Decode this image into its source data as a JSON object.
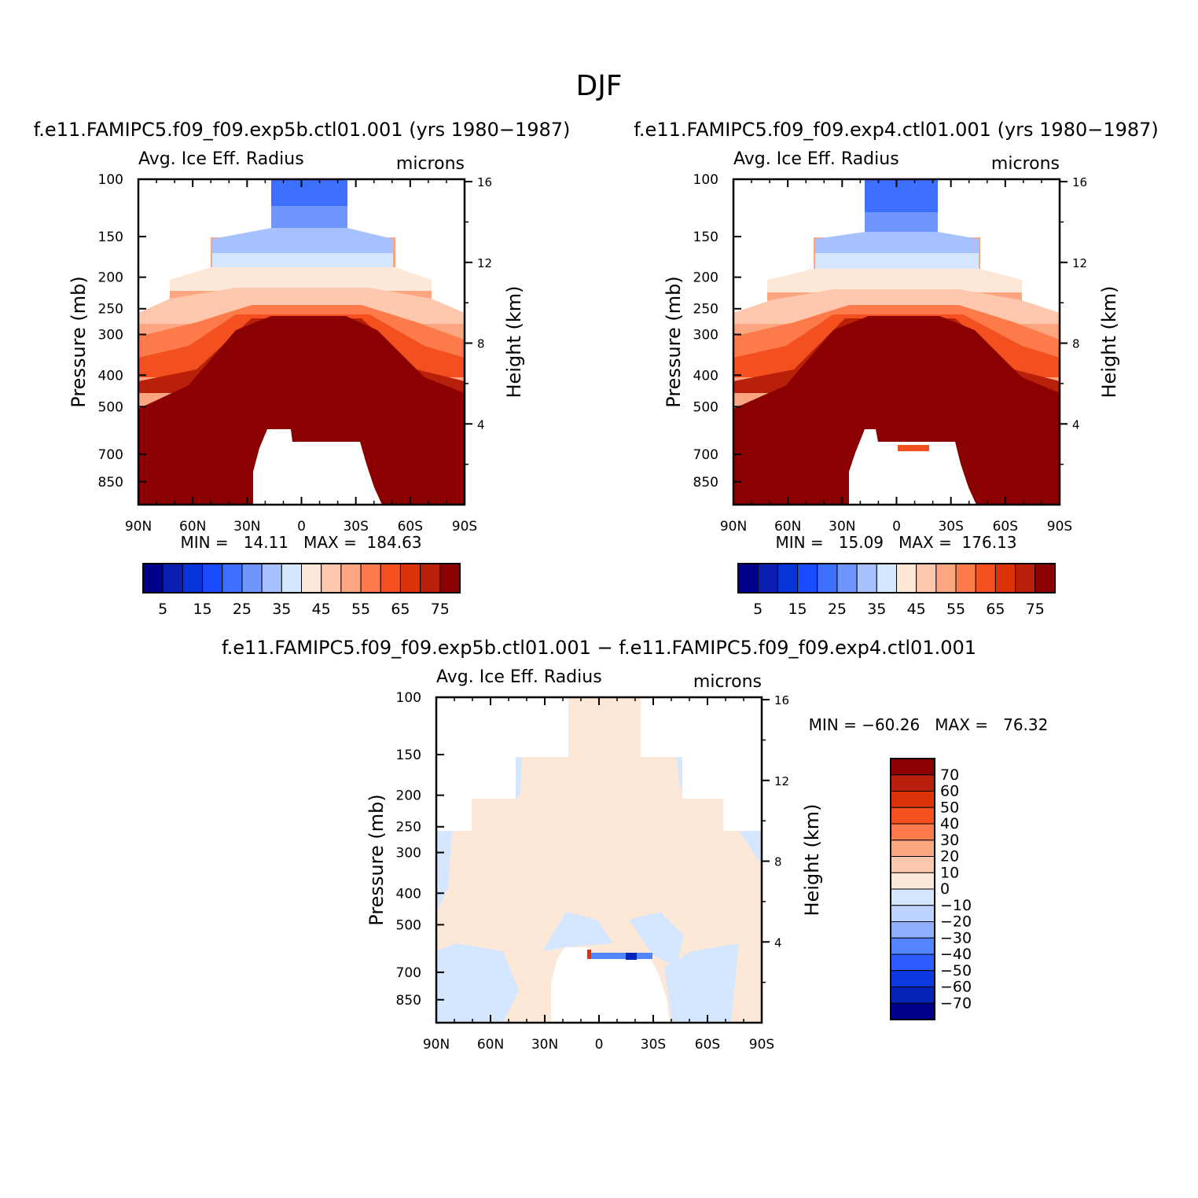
{
  "figure_title": "DJF",
  "chart_data": [
    {
      "type": "heatmap",
      "title": "f.e11.FAMIPC5.f09_f09.exp5b.ctl01.001 (yrs 1980-1987)",
      "variable": "Avg. Ice Eff. Radius",
      "units": "microns",
      "xlabel": "",
      "ylabel": "Pressure (mb)",
      "y2label": "Height (km)",
      "x_ticks": [
        "90N",
        "60N",
        "30N",
        "0",
        "30S",
        "60S",
        "90S"
      ],
      "y_ticks": [
        "100",
        "150",
        "200",
        "250",
        "300",
        "400",
        "500",
        "700",
        "850"
      ],
      "y2_ticks": [
        "16",
        "12",
        "8",
        "4"
      ],
      "ylim": [
        100,
        1000
      ],
      "stats": "MIN =   14.11   MAX =  184.63",
      "min": 14.11,
      "max": 184.63,
      "colorbar": {
        "orientation": "horizontal",
        "levels": [
          5,
          10,
          15,
          20,
          25,
          30,
          35,
          40,
          45,
          50,
          55,
          60,
          65,
          70,
          75
        ],
        "labels": [
          "5",
          "15",
          "25",
          "35",
          "45",
          "55",
          "65",
          "75"
        ],
        "colors": [
          "#00008b",
          "#0a1fb0",
          "#0535d8",
          "#1a4cff",
          "#3d70ff",
          "#6f95ff",
          "#a7c1ff",
          "#d5e6ff",
          "#fde8d8",
          "#fdc8ae",
          "#fca581",
          "#fd7a4a",
          "#f34f1f",
          "#dc3309",
          "#b8200a",
          "#8b0000"
        ]
      }
    },
    {
      "type": "heatmap",
      "title": "f.e11.FAMIPC5.f09_f09.exp4.ctl01.001 (yrs 1980-1987)",
      "variable": "Avg. Ice Eff. Radius",
      "units": "microns",
      "xlabel": "",
      "ylabel": "Pressure (mb)",
      "y2label": "Height (km)",
      "x_ticks": [
        "90N",
        "60N",
        "30N",
        "0",
        "30S",
        "60S",
        "90S"
      ],
      "y_ticks": [
        "100",
        "150",
        "200",
        "250",
        "300",
        "400",
        "500",
        "700",
        "850"
      ],
      "y2_ticks": [
        "16",
        "12",
        "8",
        "4"
      ],
      "ylim": [
        100,
        1000
      ],
      "stats": "MIN =   15.09   MAX =  176.13",
      "min": 15.09,
      "max": 176.13,
      "colorbar": {
        "orientation": "horizontal",
        "levels": [
          5,
          10,
          15,
          20,
          25,
          30,
          35,
          40,
          45,
          50,
          55,
          60,
          65,
          70,
          75
        ],
        "labels": [
          "5",
          "15",
          "25",
          "35",
          "45",
          "55",
          "65",
          "75"
        ],
        "colors": [
          "#00008b",
          "#0a1fb0",
          "#0535d8",
          "#1a4cff",
          "#3d70ff",
          "#6f95ff",
          "#a7c1ff",
          "#d5e6ff",
          "#fde8d8",
          "#fdc8ae",
          "#fca581",
          "#fd7a4a",
          "#f34f1f",
          "#dc3309",
          "#b8200a",
          "#8b0000"
        ]
      }
    },
    {
      "type": "heatmap",
      "title": "f.e11.FAMIPC5.f09_f09.exp5b.ctl01.001 - f.e11.FAMIPC5.f09_f09.exp4.ctl01.001",
      "variable": "Avg. Ice Eff. Radius",
      "units": "microns",
      "xlabel": "",
      "ylabel": "Pressure (mb)",
      "y2label": "Height (km)",
      "x_ticks": [
        "90N",
        "60N",
        "30N",
        "0",
        "30S",
        "60S",
        "90S"
      ],
      "y_ticks": [
        "100",
        "150",
        "200",
        "250",
        "300",
        "400",
        "500",
        "700",
        "850"
      ],
      "y2_ticks": [
        "16",
        "12",
        "8",
        "4"
      ],
      "ylim": [
        100,
        1000
      ],
      "stats": "MIN = -60.26   MAX =   76.32",
      "min": -60.26,
      "max": 76.32,
      "colorbar": {
        "orientation": "vertical",
        "levels": [
          70,
          60,
          50,
          40,
          30,
          20,
          10,
          0,
          -10,
          -20,
          -30,
          -40,
          -50,
          -60,
          -70
        ],
        "labels": [
          "70",
          "60",
          "50",
          "40",
          "30",
          "20",
          "10",
          "0",
          "-10",
          "-20",
          "-30",
          "-40",
          "-50",
          "-60",
          "-70"
        ],
        "colors": [
          "#8b0000",
          "#b8200a",
          "#dc3309",
          "#f34f1f",
          "#fd7a4a",
          "#fca581",
          "#fdc8ae",
          "#fde8d8",
          "#d5e6ff",
          "#bcd2ff",
          "#8fb0ff",
          "#5584ff",
          "#2d5dff",
          "#0a3ae0",
          "#0525b8",
          "#00008b"
        ]
      }
    }
  ]
}
